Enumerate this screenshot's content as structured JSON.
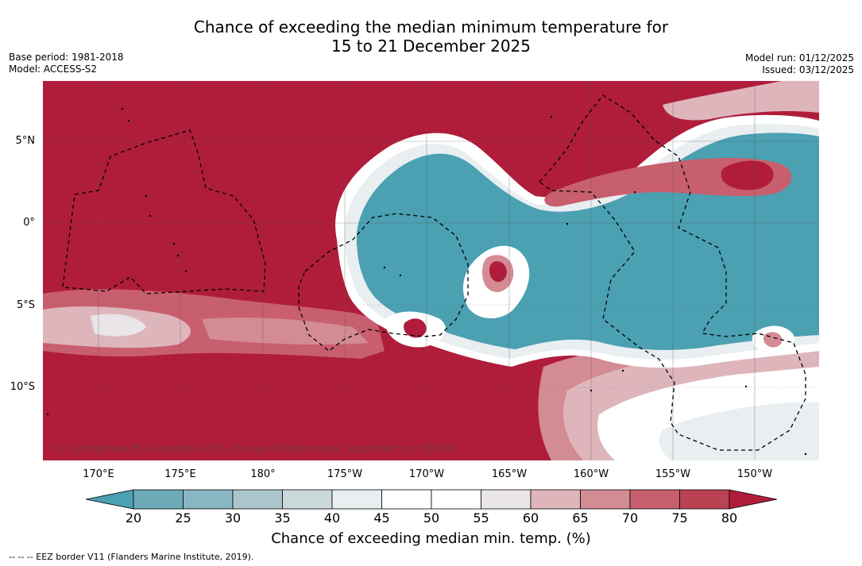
{
  "title": {
    "line1": "Chance of exceeding the median minimum temperature for",
    "line2": "15 to 21 December 2025"
  },
  "meta": {
    "base_period": "Base period: 1981-2018",
    "model": "Model: ACCESS-S2",
    "model_run": "Model run: 01/12/2025",
    "issued": "Issued: 03/12/2025"
  },
  "map": {
    "copyright": "© Commonwealth of Australia 2025, Bureau of Meteorology, supported by COSPPac",
    "lat_labels": [
      "5°N",
      "0°",
      "5°S",
      "10°S"
    ],
    "lon_labels": [
      "170°E",
      "175°E",
      "180°",
      "175°W",
      "170°W",
      "165°W",
      "160°W",
      "155°W",
      "150°W"
    ]
  },
  "colorbar": {
    "title": "Chance of exceeding median min. temp. (%)",
    "ticks": [
      "20",
      "25",
      "30",
      "35",
      "40",
      "45",
      "50",
      "55",
      "60",
      "65",
      "70",
      "75",
      "80"
    ],
    "colors": {
      "below": "#4ba0b2",
      "bins": [
        "#6caab7",
        "#88b7c3",
        "#aac6ca",
        "#cbd9db",
        "#e9eef1",
        "#ffffff",
        "#ffffff",
        "#e9e5e8",
        "#dfb5bc",
        "#d38b94",
        "#c85f6e",
        "#bb4252"
      ],
      "above": "#b01d3a"
    }
  },
  "footnote": "--  --  -- EEZ border V11 (Flanders Marine Institute, 2019)."
}
